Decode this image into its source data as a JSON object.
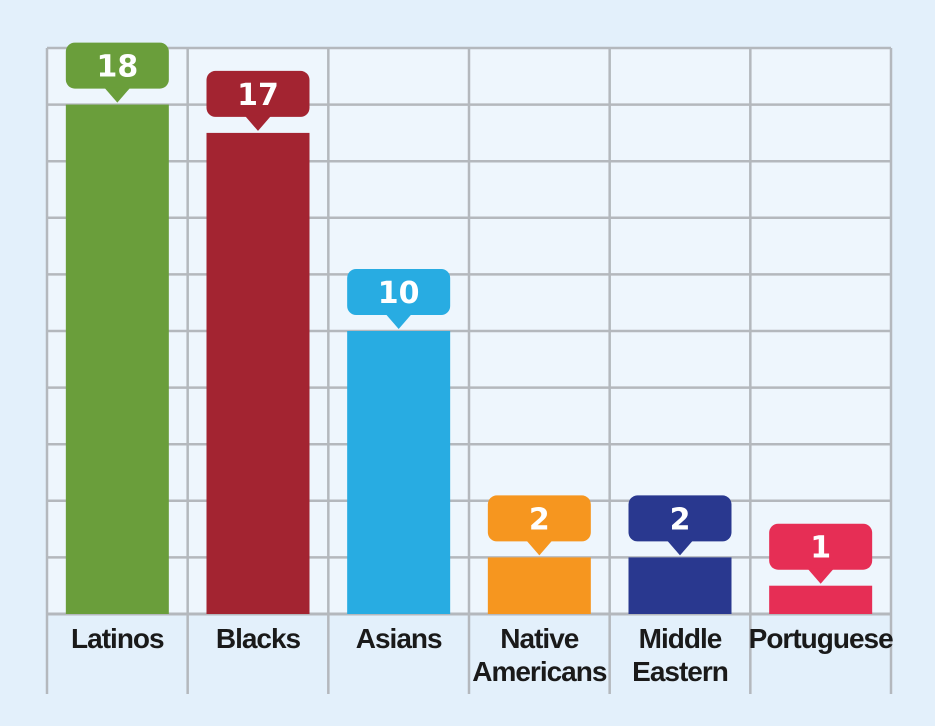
{
  "chart_data": {
    "type": "bar",
    "title": "",
    "xlabel": "",
    "ylabel": "",
    "grid": true,
    "categories": [
      [
        "Latinos"
      ],
      [
        "Blacks"
      ],
      [
        "Asians"
      ],
      [
        "Native",
        "Americans"
      ],
      [
        "Middle",
        "Eastern"
      ],
      [
        "Portuguese"
      ]
    ],
    "values": [
      18,
      17,
      10,
      2,
      2,
      1
    ],
    "colors": [
      "#6a9e3b",
      "#a32431",
      "#28ace2",
      "#f6961f",
      "#29388f",
      "#e62e55"
    ],
    "ylim": [
      0,
      20
    ]
  }
}
